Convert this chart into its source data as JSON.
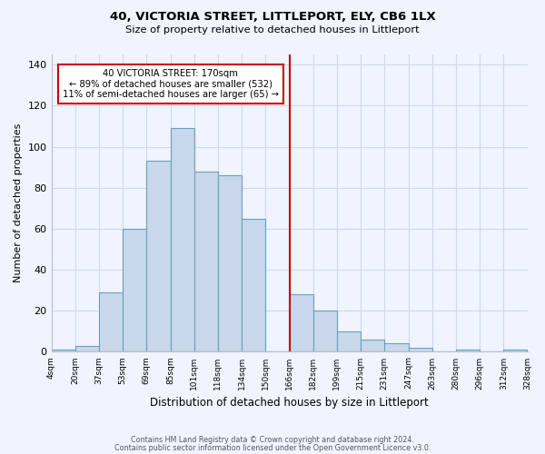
{
  "title": "40, VICTORIA STREET, LITTLEPORT, ELY, CB6 1LX",
  "subtitle": "Size of property relative to detached houses in Littleport",
  "xlabel": "Distribution of detached houses by size in Littleport",
  "ylabel": "Number of detached properties",
  "bar_color": "#c8d8ea",
  "bar_edge_color": "#6a9fc0",
  "bin_labels": [
    "4sqm",
    "20sqm",
    "37sqm",
    "53sqm",
    "69sqm",
    "85sqm",
    "101sqm",
    "118sqm",
    "134sqm",
    "150sqm",
    "166sqm",
    "182sqm",
    "199sqm",
    "215sqm",
    "231sqm",
    "247sqm",
    "263sqm",
    "280sqm",
    "296sqm",
    "312sqm",
    "328sqm"
  ],
  "bar_heights": [
    1,
    3,
    29,
    60,
    93,
    109,
    88,
    86,
    65,
    0,
    28,
    20,
    10,
    6,
    4,
    2,
    0,
    1,
    0,
    1
  ],
  "vline_x": 10.0,
  "vline_color": "#cc0000",
  "annotation_title": "40 VICTORIA STREET: 170sqm",
  "annotation_line1": "← 89% of detached houses are smaller (532)",
  "annotation_line2": "11% of semi-detached houses are larger (65) →",
  "annotation_box_color": "#ffffff",
  "annotation_box_edge": "#cc0000",
  "ylim": [
    0,
    145
  ],
  "yticks": [
    0,
    20,
    40,
    60,
    80,
    100,
    120,
    140
  ],
  "footer1": "Contains HM Land Registry data © Crown copyright and database right 2024.",
  "footer2": "Contains public sector information licensed under the Open Government Licence v3.0.",
  "background_color": "#f0f4ff",
  "grid_color": "#d0d8e8"
}
